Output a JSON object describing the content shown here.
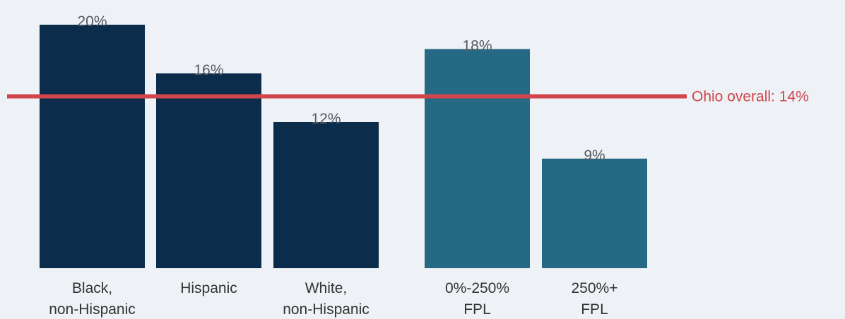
{
  "chart_data": {
    "type": "bar",
    "categories": [
      [
        "Black,",
        "non-Hispanic"
      ],
      [
        "Hispanic"
      ],
      [
        "White,",
        "non-Hispanic"
      ],
      [
        "0%-250%",
        "FPL"
      ],
      [
        "250%+",
        "FPL"
      ]
    ],
    "values": [
      20,
      16,
      12,
      18,
      9
    ],
    "value_labels": [
      "20%",
      "16%",
      "12%",
      "18%",
      "9%"
    ],
    "colors": [
      "#0b2d4b",
      "#0b2d4b",
      "#0b2d4b",
      "#266984",
      "#266984"
    ],
    "ylim": [
      0,
      22
    ],
    "grid": false,
    "reference_line": {
      "value": 14,
      "label": "Ohio overall: 14%",
      "color": "#d0464c"
    },
    "title": "",
    "xlabel": "",
    "ylabel": ""
  }
}
